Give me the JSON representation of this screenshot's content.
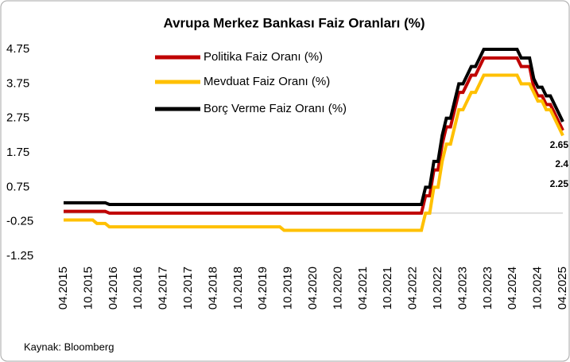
{
  "chart_data": {
    "type": "line",
    "title": "Avrupa Merkez Bankası Faiz Oranları (%)",
    "source": "Kaynak: Bloomberg",
    "categories": [
      "04.2015",
      null,
      null,
      null,
      null,
      null,
      "10.2015",
      null,
      null,
      null,
      null,
      null,
      "04.2016",
      null,
      null,
      null,
      null,
      null,
      "10.2016",
      null,
      null,
      null,
      null,
      null,
      "04.2017",
      null,
      null,
      null,
      null,
      null,
      "10.2017",
      null,
      null,
      null,
      null,
      null,
      "04.2018",
      null,
      null,
      null,
      null,
      null,
      "10.2018",
      null,
      null,
      null,
      null,
      null,
      "04.2019",
      null,
      null,
      null,
      null,
      null,
      "10.2019",
      null,
      null,
      null,
      null,
      null,
      "04.2020",
      null,
      null,
      null,
      null,
      null,
      "10.2020",
      null,
      null,
      null,
      null,
      null,
      "04.2021",
      null,
      null,
      null,
      null,
      null,
      "10.2021",
      null,
      null,
      null,
      null,
      null,
      "04.2022",
      null,
      null,
      null,
      null,
      null,
      "10.2022",
      null,
      null,
      null,
      null,
      null,
      "04.2023",
      null,
      null,
      null,
      null,
      null,
      "10.2023",
      null,
      null,
      null,
      null,
      null,
      "04.2024",
      null,
      null,
      null,
      null,
      null,
      "10.2024",
      null,
      null,
      null,
      null,
      null,
      "04.2025"
    ],
    "series": [
      {
        "name": "Politika Faiz Oranı (%)",
        "color": "#c00000",
        "values": [
          0.05,
          0.05,
          0.05,
          0.05,
          0.05,
          0.05,
          0.05,
          0.05,
          0.05,
          0.05,
          0.05,
          0,
          0,
          0,
          0,
          0,
          0,
          0,
          0,
          0,
          0,
          0,
          0,
          0,
          0,
          0,
          0,
          0,
          0,
          0,
          0,
          0,
          0,
          0,
          0,
          0,
          0,
          0,
          0,
          0,
          0,
          0,
          0,
          0,
          0,
          0,
          0,
          0,
          0,
          0,
          0,
          0,
          0,
          0,
          0,
          0,
          0,
          0,
          0,
          0,
          0,
          0,
          0,
          0,
          0,
          0,
          0,
          0,
          0,
          0,
          0,
          0,
          0,
          0,
          0,
          0,
          0,
          0,
          0,
          0,
          0,
          0,
          0,
          0,
          0,
          0,
          0,
          0.5,
          0.5,
          1.25,
          1.25,
          2,
          2.5,
          2.5,
          3,
          3.5,
          3.5,
          3.75,
          4,
          4,
          4.25,
          4.5,
          4.5,
          4.5,
          4.5,
          4.5,
          4.5,
          4.5,
          4.5,
          4.5,
          4.25,
          4.25,
          4.25,
          3.65,
          3.4,
          3.4,
          3.15,
          3.15,
          2.9,
          2.65,
          2.4
        ]
      },
      {
        "name": "Mevduat Faiz Oranı (%)",
        "color": "#ffc000",
        "values": [
          -0.2,
          -0.2,
          -0.2,
          -0.2,
          -0.2,
          -0.2,
          -0.2,
          -0.2,
          -0.3,
          -0.3,
          -0.3,
          -0.4,
          -0.4,
          -0.4,
          -0.4,
          -0.4,
          -0.4,
          -0.4,
          -0.4,
          -0.4,
          -0.4,
          -0.4,
          -0.4,
          -0.4,
          -0.4,
          -0.4,
          -0.4,
          -0.4,
          -0.4,
          -0.4,
          -0.4,
          -0.4,
          -0.4,
          -0.4,
          -0.4,
          -0.4,
          -0.4,
          -0.4,
          -0.4,
          -0.4,
          -0.4,
          -0.4,
          -0.4,
          -0.4,
          -0.4,
          -0.4,
          -0.4,
          -0.4,
          -0.4,
          -0.4,
          -0.4,
          -0.4,
          -0.4,
          -0.5,
          -0.5,
          -0.5,
          -0.5,
          -0.5,
          -0.5,
          -0.5,
          -0.5,
          -0.5,
          -0.5,
          -0.5,
          -0.5,
          -0.5,
          -0.5,
          -0.5,
          -0.5,
          -0.5,
          -0.5,
          -0.5,
          -0.5,
          -0.5,
          -0.5,
          -0.5,
          -0.5,
          -0.5,
          -0.5,
          -0.5,
          -0.5,
          -0.5,
          -0.5,
          -0.5,
          -0.5,
          -0.5,
          -0.5,
          0,
          0,
          0.75,
          0.75,
          1.5,
          2,
          2,
          2.5,
          3,
          3,
          3.25,
          3.5,
          3.5,
          3.75,
          4,
          4,
          4,
          4,
          4,
          4,
          4,
          4,
          4,
          3.75,
          3.75,
          3.75,
          3.5,
          3.25,
          3.25,
          3,
          3,
          2.75,
          2.5,
          2.25
        ]
      },
      {
        "name": "Borç Verme Faiz Oranı (%)",
        "color": "#000000",
        "values": [
          0.3,
          0.3,
          0.3,
          0.3,
          0.3,
          0.3,
          0.3,
          0.3,
          0.3,
          0.3,
          0.3,
          0.25,
          0.25,
          0.25,
          0.25,
          0.25,
          0.25,
          0.25,
          0.25,
          0.25,
          0.25,
          0.25,
          0.25,
          0.25,
          0.25,
          0.25,
          0.25,
          0.25,
          0.25,
          0.25,
          0.25,
          0.25,
          0.25,
          0.25,
          0.25,
          0.25,
          0.25,
          0.25,
          0.25,
          0.25,
          0.25,
          0.25,
          0.25,
          0.25,
          0.25,
          0.25,
          0.25,
          0.25,
          0.25,
          0.25,
          0.25,
          0.25,
          0.25,
          0.25,
          0.25,
          0.25,
          0.25,
          0.25,
          0.25,
          0.25,
          0.25,
          0.25,
          0.25,
          0.25,
          0.25,
          0.25,
          0.25,
          0.25,
          0.25,
          0.25,
          0.25,
          0.25,
          0.25,
          0.25,
          0.25,
          0.25,
          0.25,
          0.25,
          0.25,
          0.25,
          0.25,
          0.25,
          0.25,
          0.25,
          0.25,
          0.25,
          0.25,
          0.75,
          0.75,
          1.5,
          1.5,
          2.25,
          2.75,
          2.75,
          3.25,
          3.75,
          3.75,
          4,
          4.25,
          4.25,
          4.5,
          4.75,
          4.75,
          4.75,
          4.75,
          4.75,
          4.75,
          4.75,
          4.75,
          4.75,
          4.5,
          4.5,
          4.5,
          3.9,
          3.65,
          3.65,
          3.4,
          3.4,
          3.15,
          2.9,
          2.65
        ]
      }
    ],
    "ylim": [
      -1.25,
      4.75
    ],
    "yticks": [
      4.75,
      3.75,
      2.75,
      1.75,
      0.75,
      -0.25,
      -1.25
    ]
  }
}
